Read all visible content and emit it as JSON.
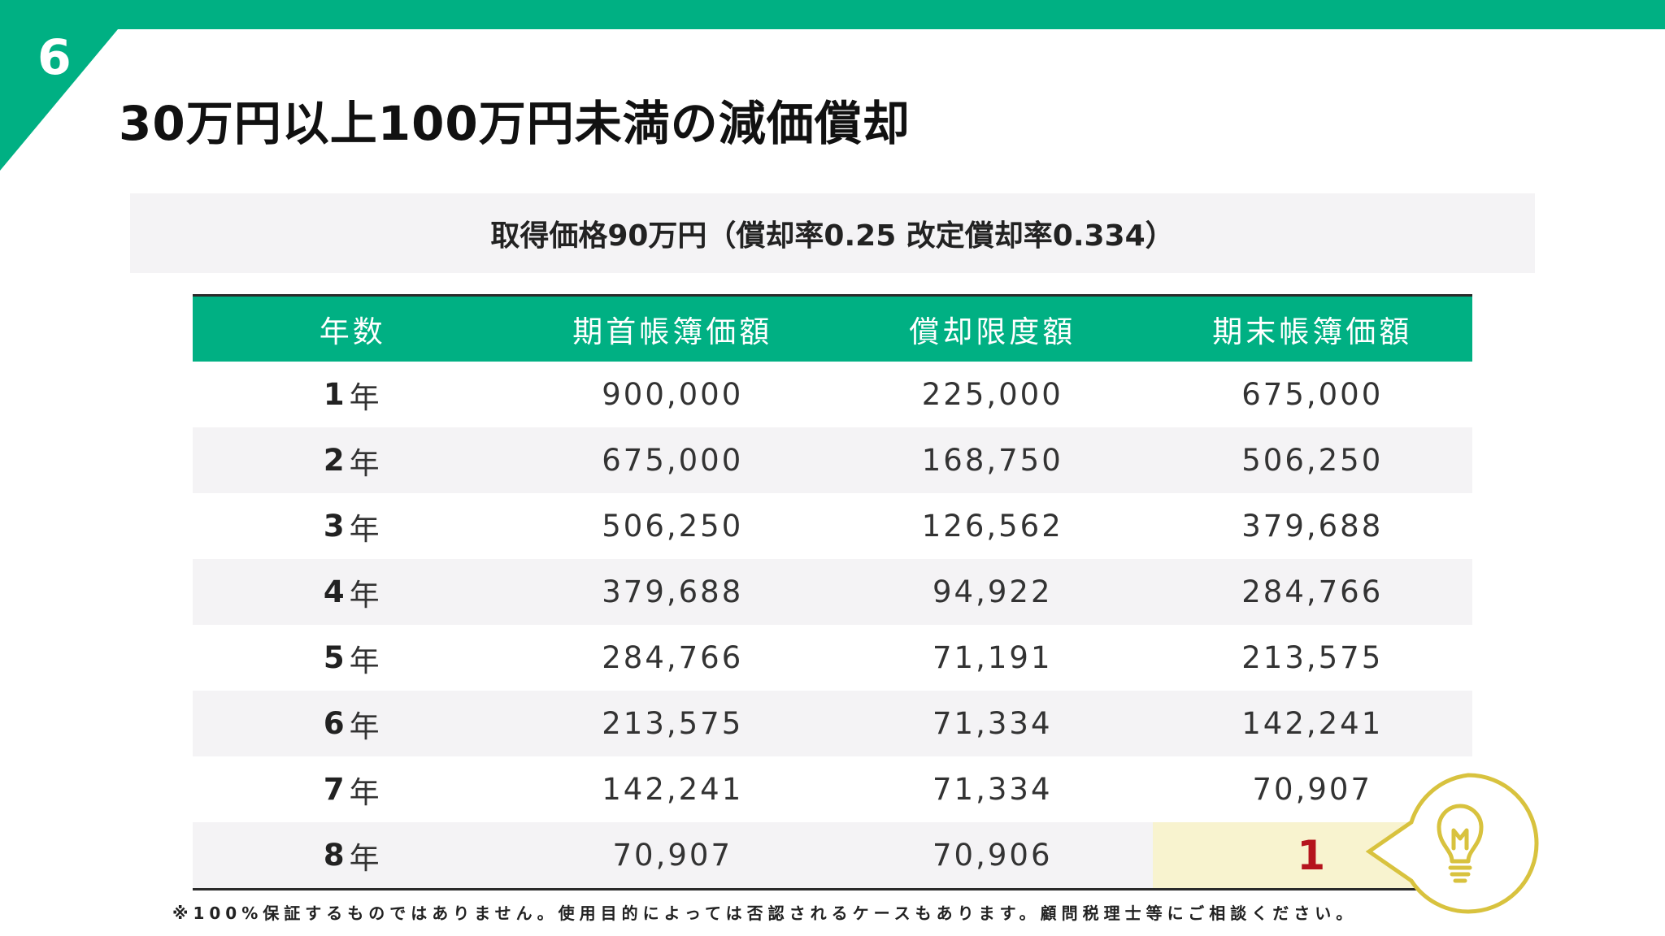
{
  "colors": {
    "accent": "#00b083",
    "highlight_bg": "#f8f3cf",
    "final_value": "#b5141d",
    "badge": "#d8c23e",
    "stripe": "#f4f3f5"
  },
  "page": {
    "number": "6",
    "title": "30万円以上100万円未満の減価償却"
  },
  "subtitle": "取得価格90万円（償却率0.25 改定償却率0.334）",
  "table": {
    "headers": [
      "年数",
      "期首帳簿価額",
      "償却限度額",
      "期末帳簿価額"
    ],
    "year_unit": "年",
    "rows": [
      {
        "year": "1",
        "opening": "900,000",
        "depreciation": "225,000",
        "closing": "675,000"
      },
      {
        "year": "2",
        "opening": "675,000",
        "depreciation": "168,750",
        "closing": "506,250"
      },
      {
        "year": "3",
        "opening": "506,250",
        "depreciation": "126,562",
        "closing": "379,688"
      },
      {
        "year": "4",
        "opening": "379,688",
        "depreciation": "94,922",
        "closing": "284,766"
      },
      {
        "year": "5",
        "opening": "284,766",
        "depreciation": "71,191",
        "closing": "213,575"
      },
      {
        "year": "6",
        "opening": "213,575",
        "depreciation": "71,334",
        "closing": "142,241"
      },
      {
        "year": "7",
        "opening": "142,241",
        "depreciation": "71,334",
        "closing": "70,907"
      },
      {
        "year": "8",
        "opening": "70,907",
        "depreciation": "70,906",
        "closing": "1"
      }
    ]
  },
  "footnote": "※100%保証するものではありません。使用目的によっては否認されるケースもあります。顧問税理士等にご相談ください。",
  "icons": {
    "hint": "lightbulb-icon"
  }
}
